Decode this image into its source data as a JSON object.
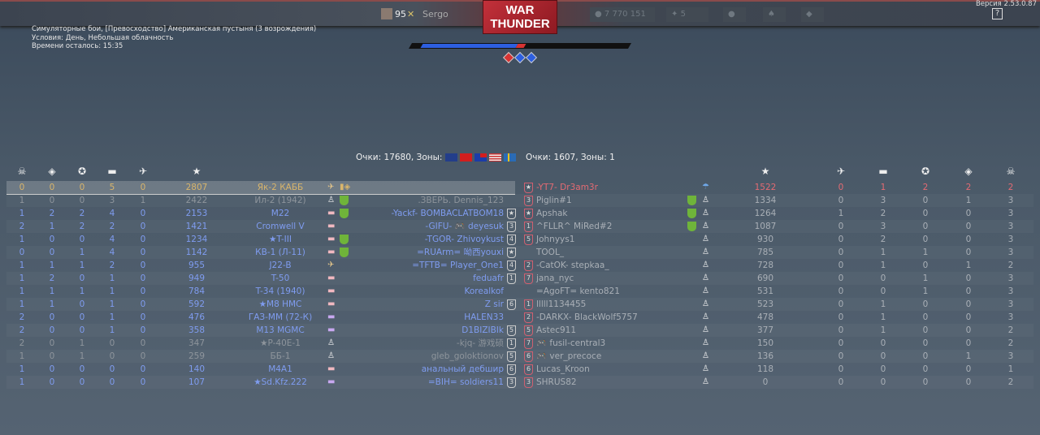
{
  "topbar": {
    "player_level": "95",
    "player_name": "Sergo",
    "logo": "WAR THUNDER",
    "silver_lions": "7 770 151",
    "golden_eagles": "5",
    "version": "Версия 2.53.0.87",
    "help": "?"
  },
  "mission": {
    "title": "Симуляторные бои, [Превосходство] Американская пустыня (3 возрождения)",
    "conditions": "Условия: День, Небольшая облачность",
    "time_left": "Времени осталось: 15:35"
  },
  "progress": {
    "blue_fraction": 0.45,
    "red_fraction": 0.04,
    "colors": {
      "blue": "#2d5fe0",
      "red": "#d73333"
    }
  },
  "zones": [
    {
      "owner": "red"
    },
    {
      "owner": "blue"
    },
    {
      "owner": "blue"
    }
  ],
  "team_left": {
    "score_text": "Очки: 17680, Зоны: 2",
    "flags": [
      "uk",
      "china",
      "taiwan",
      "usa",
      "sweden"
    ],
    "headers": [
      "skull-icon",
      "capture-icon",
      "assist-icon",
      "ground-kill-icon",
      "air-kill-icon",
      "score-star-icon"
    ],
    "rows": [
      {
        "s": [
          "0",
          "0",
          "0",
          "5",
          "0",
          "2807"
        ],
        "vehicle": "Як-2 КАББ",
        "name": "Sergo",
        "state": "me",
        "icon": "plane",
        "extra": "medal",
        "badge": ""
      },
      {
        "s": [
          "1",
          "0",
          "0",
          "3",
          "1",
          "2422"
        ],
        "vehicle": "Ил-2 (1942)",
        "name": ".ЗВЕРЬ. Dennis_123",
        "state": "grey",
        "icon": "dead",
        "extra": "shield",
        "badge": ""
      },
      {
        "s": [
          "1",
          "2",
          "2",
          "4",
          "0",
          "2153"
        ],
        "vehicle": "M22",
        "name": "-Yackf- BOMBACLATBOM18",
        "state": "blue",
        "icon": "tank",
        "extra": "shield",
        "badge": "★"
      },
      {
        "s": [
          "2",
          "1",
          "2",
          "2",
          "0",
          "1421"
        ],
        "vehicle": "Cromwell V",
        "name": "-GIFU- 🎮 deyesuk",
        "state": "blue",
        "icon": "tank",
        "extra": "",
        "badge": "3"
      },
      {
        "s": [
          "1",
          "0",
          "0",
          "4",
          "0",
          "1234"
        ],
        "vehicle": "★T-III",
        "name": "-TGOR- Zhivoykust",
        "state": "blue",
        "icon": "tank",
        "extra": "shield",
        "badge": "4"
      },
      {
        "s": [
          "0",
          "0",
          "1",
          "4",
          "0",
          "1142"
        ],
        "vehicle": "КВ-1 (Л-11)",
        "name": "=RUArm= 呦西youxi",
        "state": "blue",
        "icon": "tank",
        "extra": "shield",
        "badge": "★"
      },
      {
        "s": [
          "1",
          "1",
          "1",
          "2",
          "0",
          "955"
        ],
        "vehicle": "J22-B",
        "name": "=TFTB= Player_One1",
        "state": "blue",
        "icon": "plane",
        "extra": "",
        "badge": "4"
      },
      {
        "s": [
          "1",
          "2",
          "0",
          "1",
          "0",
          "949"
        ],
        "vehicle": "T-50",
        "name": "feduafr",
        "state": "blue",
        "icon": "tank",
        "extra": "",
        "badge": "1"
      },
      {
        "s": [
          "1",
          "1",
          "1",
          "1",
          "0",
          "784"
        ],
        "vehicle": "T-34 (1940)",
        "name": "Korealkof",
        "state": "blue",
        "icon": "tank",
        "extra": "",
        "badge": ""
      },
      {
        "s": [
          "1",
          "1",
          "0",
          "1",
          "0",
          "592"
        ],
        "vehicle": "★M8 HMC",
        "name": "Z sir",
        "state": "blue",
        "icon": "tank",
        "extra": "",
        "badge": "6"
      },
      {
        "s": [
          "2",
          "0",
          "0",
          "1",
          "0",
          "476"
        ],
        "vehicle": "ГАЗ-ММ (72-К)",
        "name": "HALEN33",
        "state": "blue",
        "icon": "aa",
        "extra": "",
        "badge": ""
      },
      {
        "s": [
          "2",
          "0",
          "0",
          "1",
          "0",
          "358"
        ],
        "vehicle": "M13 MGMC",
        "name": "D1BIZIBIk",
        "state": "blue",
        "icon": "aa",
        "extra": "",
        "badge": "5"
      },
      {
        "s": [
          "2",
          "0",
          "1",
          "0",
          "0",
          "347"
        ],
        "vehicle": "★P-40E-1",
        "name": "-kjq- 游戏硕",
        "state": "grey",
        "icon": "dead",
        "extra": "",
        "badge": "1"
      },
      {
        "s": [
          "1",
          "0",
          "1",
          "0",
          "0",
          "259"
        ],
        "vehicle": "ББ-1",
        "name": "gleb_goloktionov",
        "state": "grey",
        "icon": "dead",
        "extra": "",
        "badge": "5"
      },
      {
        "s": [
          "1",
          "0",
          "0",
          "0",
          "0",
          "140"
        ],
        "vehicle": "M4A1",
        "name": "анальный дебшир",
        "state": "blue",
        "icon": "tank",
        "extra": "",
        "badge": "6"
      },
      {
        "s": [
          "1",
          "0",
          "0",
          "0",
          "0",
          "107"
        ],
        "vehicle": "★Sd.Kfz.222",
        "name": "=BIH= soldiers11",
        "state": "blue",
        "icon": "aa",
        "extra": "",
        "badge": "3"
      }
    ]
  },
  "team_right": {
    "score_text": "Очки: 1607, Зоны: 1",
    "headers": [
      "score-star-icon",
      "air-kill-icon",
      "ground-kill-icon",
      "assist-icon",
      "capture-icon",
      "skull-icon"
    ],
    "rows": [
      {
        "name": "-YT7- Dr3am3r",
        "badge": "★",
        "state": "red",
        "icon": "parachute",
        "shield": false,
        "s": [
          "1522",
          "0",
          "1",
          "2",
          "2",
          "2"
        ]
      },
      {
        "name": "Piglin#1",
        "badge": "3",
        "state": "rg",
        "icon": "dead",
        "shield": true,
        "s": [
          "1334",
          "0",
          "3",
          "0",
          "1",
          "3"
        ]
      },
      {
        "name": "Apshak",
        "badge": "★",
        "state": "rg",
        "icon": "dead",
        "shield": true,
        "s": [
          "1264",
          "1",
          "2",
          "0",
          "0",
          "3"
        ]
      },
      {
        "name": "^FLLR^ MiRed#2",
        "badge": "1",
        "state": "rg",
        "icon": "dead",
        "shield": true,
        "s": [
          "1087",
          "0",
          "3",
          "0",
          "0",
          "3"
        ]
      },
      {
        "name": "Johnyys1",
        "badge": "5",
        "state": "rg",
        "icon": "dead",
        "shield": false,
        "s": [
          "930",
          "0",
          "2",
          "0",
          "0",
          "3"
        ]
      },
      {
        "name": "TOOL_",
        "badge": "",
        "state": "rg",
        "icon": "dead",
        "shield": false,
        "s": [
          "785",
          "0",
          "1",
          "1",
          "0",
          "3"
        ]
      },
      {
        "name": "-CatOK- stepkaa_",
        "badge": "2",
        "state": "rg",
        "icon": "dead",
        "shield": false,
        "s": [
          "728",
          "0",
          "1",
          "0",
          "1",
          "2"
        ]
      },
      {
        "name": "jana_nyc",
        "badge": "7",
        "state": "rg",
        "icon": "dead",
        "shield": false,
        "s": [
          "690",
          "0",
          "0",
          "1",
          "0",
          "3"
        ]
      },
      {
        "name": "=AgoFT= kento821",
        "badge": "",
        "state": "rg",
        "icon": "dead",
        "shield": false,
        "s": [
          "531",
          "0",
          "0",
          "1",
          "0",
          "3"
        ]
      },
      {
        "name": "lllll1134455",
        "badge": "1",
        "state": "rg",
        "icon": "dead",
        "shield": false,
        "s": [
          "523",
          "0",
          "1",
          "0",
          "0",
          "3"
        ]
      },
      {
        "name": "-DARKX- BlackWolf5757",
        "badge": "2",
        "state": "rg",
        "icon": "dead",
        "shield": false,
        "s": [
          "478",
          "0",
          "1",
          "0",
          "0",
          "3"
        ]
      },
      {
        "name": "Astec911",
        "badge": "5",
        "state": "rg",
        "icon": "dead",
        "shield": false,
        "s": [
          "377",
          "0",
          "1",
          "0",
          "0",
          "2"
        ]
      },
      {
        "name": "🎮 fusil-central3",
        "badge": "7",
        "state": "rg",
        "icon": "dead",
        "shield": false,
        "s": [
          "150",
          "0",
          "0",
          "0",
          "0",
          "2"
        ]
      },
      {
        "name": "🎮 ver_precoce",
        "badge": "6",
        "state": "rg",
        "icon": "dead",
        "shield": false,
        "s": [
          "136",
          "0",
          "0",
          "0",
          "1",
          "3"
        ]
      },
      {
        "name": "Lucas_Kroon",
        "badge": "6",
        "state": "rg",
        "icon": "dead",
        "shield": false,
        "s": [
          "118",
          "0",
          "0",
          "0",
          "0",
          "1"
        ]
      },
      {
        "name": "SHRUS82",
        "badge": "3",
        "state": "rg",
        "icon": "dead",
        "shield": false,
        "s": [
          "0",
          "0",
          "0",
          "0",
          "0",
          "2"
        ]
      }
    ]
  }
}
